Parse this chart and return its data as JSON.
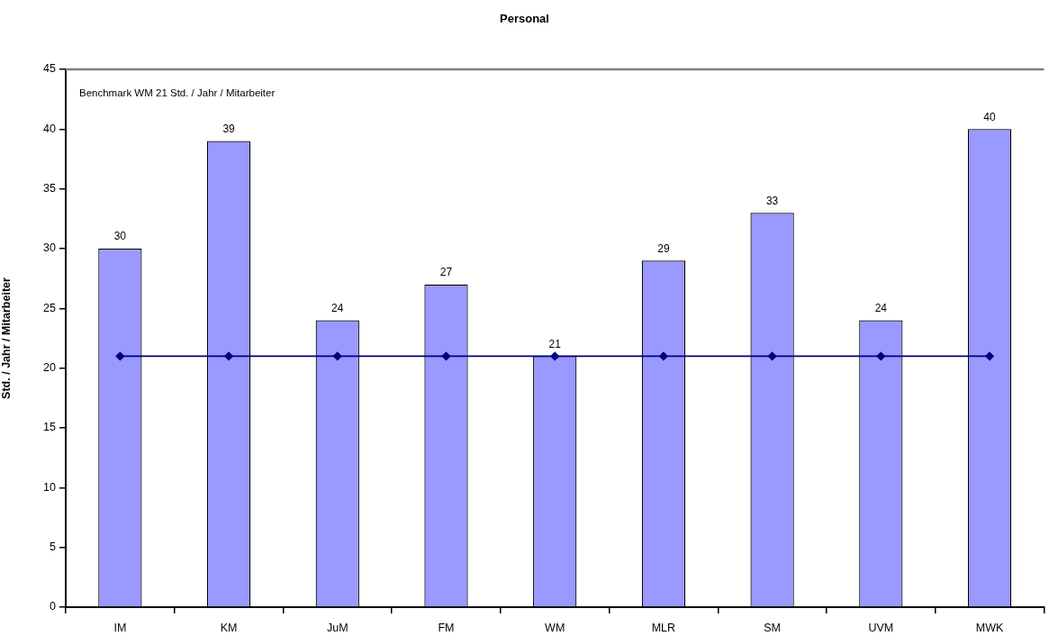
{
  "chart_data": {
    "type": "bar",
    "title": "Personal",
    "ylabel": "Std. / Jahr / Mitarbeiter",
    "categories": [
      "IM",
      "KM",
      "JuM",
      "FM",
      "WM",
      "MLR",
      "SM",
      "UVM",
      "MWK"
    ],
    "series": [
      {
        "color": "#9999ff",
        "values": [
          30,
          39,
          24,
          27,
          21,
          29,
          33,
          24,
          40
        ],
        "value_labels": [
          "30",
          "39",
          "24",
          "27",
          "21",
          "29",
          "33",
          "24",
          "40"
        ]
      },
      {
        "type": "line",
        "color": "#000080",
        "values": [
          21,
          21,
          21,
          21,
          21,
          21,
          21,
          21,
          21
        ]
      }
    ],
    "marker": "diamond",
    "ylim": [
      0,
      45
    ],
    "yticks": [
      0,
      5,
      10,
      15,
      20,
      25,
      30,
      35,
      40,
      45
    ],
    "grid": false,
    "legend": false,
    "annotations": [
      "Benchmark WM 21 Std. / Jahr / Mitarbeiter"
    ]
  }
}
